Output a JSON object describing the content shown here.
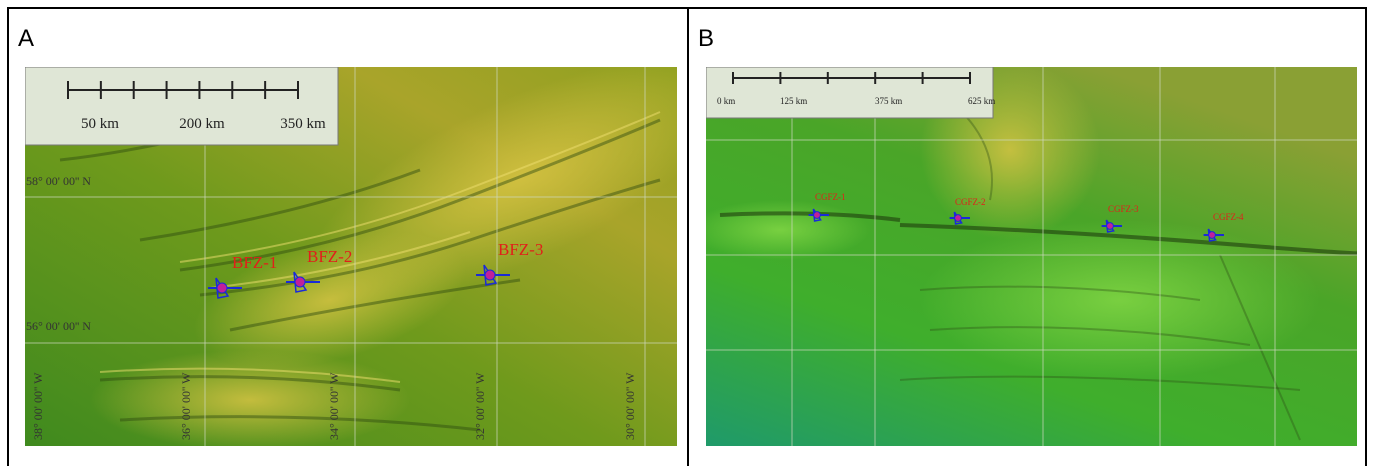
{
  "panels": [
    {
      "label": "A",
      "scale_labels": [
        "50 km",
        "200 km",
        "350 km"
      ],
      "lat_labels": [
        "58° 00' 00'' N",
        "56° 00' 00'' N"
      ],
      "lon_labels": [
        "38° 00' 00'' W",
        "36° 00' 00'' W",
        "34° 00' 00'' W",
        "32° 00' 00'' W",
        "30° 00' 00'' W"
      ],
      "stations": [
        "BFZ-1",
        "BFZ-2",
        "BFZ-3"
      ]
    },
    {
      "label": "B",
      "scale_labels": [
        "0 km",
        "125 km",
        "375 km",
        "625 km"
      ],
      "stations": [
        "CGFZ-1",
        "CGFZ-2",
        "CGFZ-3",
        "CGFZ-4"
      ]
    }
  ]
}
